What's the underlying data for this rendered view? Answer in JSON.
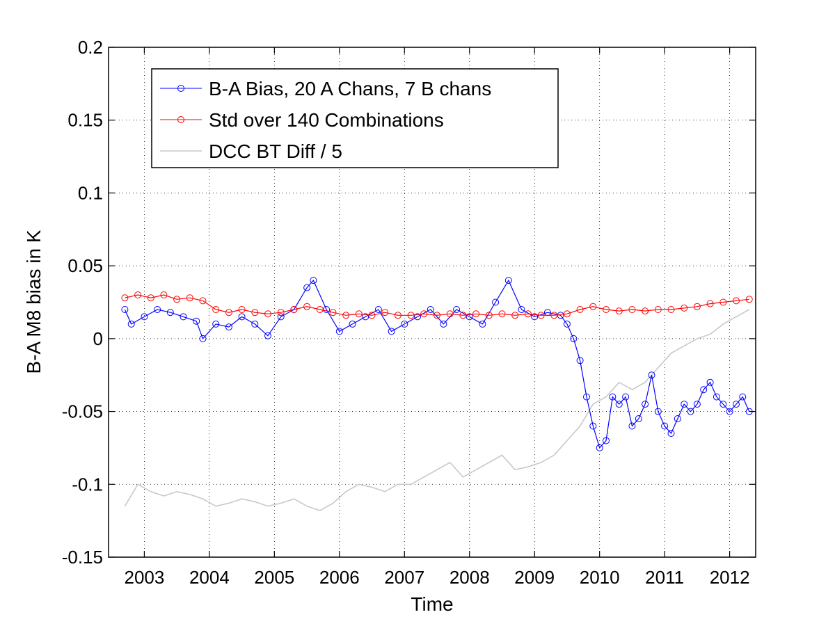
{
  "chart_data": {
    "type": "line",
    "title": "",
    "xlabel": "Time",
    "ylabel": "B-A M8 bias in K",
    "xlim": [
      2002.45,
      2012.4
    ],
    "ylim": [
      -0.15,
      0.2
    ],
    "x_ticks": [
      2003,
      2004,
      2005,
      2006,
      2007,
      2008,
      2009,
      2010,
      2011,
      2012
    ],
    "x_tick_labels": [
      "2003",
      "2004",
      "2005",
      "2006",
      "2007",
      "2008",
      "2009",
      "2010",
      "2011",
      "2012"
    ],
    "y_ticks": [
      -0.15,
      -0.1,
      -0.05,
      0,
      0.05,
      0.1,
      0.15,
      0.2
    ],
    "y_tick_labels": [
      "-0.15",
      "-0.1",
      "-0.05",
      "0",
      "0.05",
      "0.1",
      "0.15",
      "0.2"
    ],
    "grid": true,
    "legend_position": "top-left",
    "series": [
      {
        "name": "B-A Bias, 20 A Chans, 7 B chans",
        "color": "#0000ff",
        "marker": "circle",
        "x": [
          2002.7,
          2002.8,
          2003.0,
          2003.2,
          2003.4,
          2003.6,
          2003.8,
          2003.9,
          2004.1,
          2004.3,
          2004.5,
          2004.7,
          2004.9,
          2005.1,
          2005.3,
          2005.5,
          2005.6,
          2005.8,
          2006.0,
          2006.2,
          2006.4,
          2006.6,
          2006.8,
          2007.0,
          2007.2,
          2007.4,
          2007.6,
          2007.8,
          2008.0,
          2008.2,
          2008.4,
          2008.6,
          2008.8,
          2009.0,
          2009.2,
          2009.4,
          2009.5,
          2009.6,
          2009.7,
          2009.8,
          2009.9,
          2010.0,
          2010.1,
          2010.2,
          2010.3,
          2010.4,
          2010.5,
          2010.6,
          2010.7,
          2010.8,
          2010.9,
          2011.0,
          2011.1,
          2011.2,
          2011.3,
          2011.4,
          2011.5,
          2011.6,
          2011.7,
          2011.8,
          2011.9,
          2012.0,
          2012.1,
          2012.2,
          2012.3
        ],
        "y": [
          0.02,
          0.01,
          0.015,
          0.02,
          0.018,
          0.015,
          0.012,
          0.0,
          0.01,
          0.008,
          0.015,
          0.01,
          0.002,
          0.015,
          0.02,
          0.035,
          0.04,
          0.02,
          0.005,
          0.01,
          0.015,
          0.02,
          0.005,
          0.01,
          0.015,
          0.02,
          0.01,
          0.02,
          0.015,
          0.01,
          0.025,
          0.04,
          0.02,
          0.015,
          0.018,
          0.016,
          0.01,
          0.0,
          -0.015,
          -0.04,
          -0.06,
          -0.075,
          -0.07,
          -0.04,
          -0.045,
          -0.04,
          -0.06,
          -0.055,
          -0.045,
          -0.025,
          -0.05,
          -0.06,
          -0.065,
          -0.055,
          -0.045,
          -0.05,
          -0.045,
          -0.035,
          -0.03,
          -0.04,
          -0.045,
          -0.05,
          -0.045,
          -0.04,
          -0.05
        ]
      },
      {
        "name": "Std over 140 Combinations",
        "color": "#ff0000",
        "marker": "circle",
        "x": [
          2002.7,
          2002.9,
          2003.1,
          2003.3,
          2003.5,
          2003.7,
          2003.9,
          2004.1,
          2004.3,
          2004.5,
          2004.7,
          2004.9,
          2005.1,
          2005.3,
          2005.5,
          2005.7,
          2005.9,
          2006.1,
          2006.3,
          2006.5,
          2006.7,
          2006.9,
          2007.1,
          2007.3,
          2007.5,
          2007.7,
          2007.9,
          2008.1,
          2008.3,
          2008.5,
          2008.7,
          2008.9,
          2009.1,
          2009.3,
          2009.5,
          2009.7,
          2009.9,
          2010.1,
          2010.3,
          2010.5,
          2010.7,
          2010.9,
          2011.1,
          2011.3,
          2011.5,
          2011.7,
          2011.9,
          2012.1,
          2012.3
        ],
        "y": [
          0.028,
          0.03,
          0.028,
          0.03,
          0.027,
          0.028,
          0.026,
          0.02,
          0.018,
          0.02,
          0.018,
          0.017,
          0.018,
          0.02,
          0.022,
          0.02,
          0.018,
          0.016,
          0.017,
          0.016,
          0.018,
          0.016,
          0.016,
          0.017,
          0.016,
          0.017,
          0.016,
          0.017,
          0.016,
          0.017,
          0.016,
          0.017,
          0.016,
          0.016,
          0.017,
          0.02,
          0.022,
          0.02,
          0.019,
          0.02,
          0.019,
          0.02,
          0.02,
          0.021,
          0.022,
          0.024,
          0.025,
          0.026,
          0.027
        ]
      },
      {
        "name": "DCC BT Diff / 5",
        "color": "#c8c8c8",
        "marker": "none",
        "x": [
          2002.7,
          2002.9,
          2003.1,
          2003.3,
          2003.5,
          2003.7,
          2003.9,
          2004.1,
          2004.3,
          2004.5,
          2004.7,
          2004.9,
          2005.1,
          2005.3,
          2005.5,
          2005.7,
          2005.9,
          2006.1,
          2006.3,
          2006.5,
          2006.7,
          2006.9,
          2007.1,
          2007.3,
          2007.5,
          2007.7,
          2007.9,
          2008.1,
          2008.3,
          2008.5,
          2008.7,
          2008.9,
          2009.1,
          2009.3,
          2009.5,
          2009.7,
          2009.9,
          2010.1,
          2010.3,
          2010.5,
          2010.7,
          2010.9,
          2011.1,
          2011.3,
          2011.5,
          2011.7,
          2011.9,
          2012.1,
          2012.3
        ],
        "y": [
          -0.115,
          -0.1,
          -0.105,
          -0.108,
          -0.105,
          -0.107,
          -0.11,
          -0.115,
          -0.113,
          -0.11,
          -0.112,
          -0.115,
          -0.113,
          -0.11,
          -0.115,
          -0.118,
          -0.113,
          -0.105,
          -0.1,
          -0.102,
          -0.105,
          -0.1,
          -0.1,
          -0.095,
          -0.09,
          -0.085,
          -0.095,
          -0.09,
          -0.085,
          -0.08,
          -0.09,
          -0.088,
          -0.085,
          -0.08,
          -0.07,
          -0.06,
          -0.045,
          -0.04,
          -0.03,
          -0.035,
          -0.03,
          -0.02,
          -0.01,
          -0.005,
          0.0,
          0.003,
          0.01,
          0.015,
          0.02
        ]
      }
    ]
  }
}
